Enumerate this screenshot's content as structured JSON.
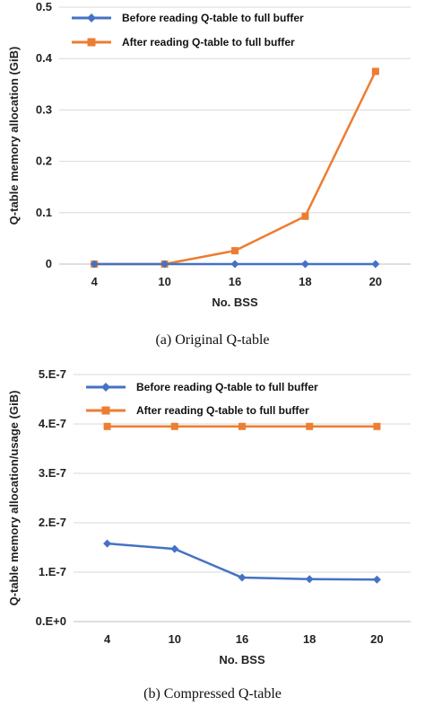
{
  "captions": {
    "a": "(a) Original Q-table",
    "b": "(b) Compressed Q-table"
  },
  "chart_data": [
    {
      "type": "line",
      "title": "",
      "xlabel": "No. BSS",
      "ylabel": "Q-table memory allocation (GiB)",
      "categories": [
        "4",
        "10",
        "16",
        "18",
        "20"
      ],
      "ylim": [
        0,
        0.5
      ],
      "yticks": [
        0,
        0.1,
        0.2,
        0.3,
        0.4,
        0.5
      ],
      "ytick_labels": [
        "0",
        "0.1",
        "0.2",
        "0.3",
        "0.4",
        "0.5"
      ],
      "grid": true,
      "legend": "top-left",
      "series": [
        {
          "name": "Before reading Q-table to full buffer",
          "color": "#4472c4",
          "marker": "diamond",
          "values": [
            0,
            0,
            0,
            0,
            0
          ]
        },
        {
          "name": "After reading Q-table to full buffer",
          "color": "#ed7d31",
          "marker": "square",
          "values": [
            0,
            0,
            0.026,
            0.093,
            0.375
          ]
        }
      ]
    },
    {
      "type": "line",
      "title": "",
      "xlabel": "No. BSS",
      "ylabel": "Q-table memory allocation/usage (GiB)",
      "categories": [
        "4",
        "10",
        "16",
        "18",
        "20"
      ],
      "ylim": [
        0,
        5e-07
      ],
      "yticks": [
        0,
        1e-07,
        2e-07,
        3e-07,
        4e-07,
        5e-07
      ],
      "ytick_labels": [
        "0.E+0",
        "1.E-7",
        "2.E-7",
        "3.E-7",
        "4.E-7",
        "5.E-7"
      ],
      "grid": true,
      "legend": "top-left",
      "series": [
        {
          "name": "Before reading Q-table to full buffer",
          "color": "#4472c4",
          "marker": "diamond",
          "values": [
            1.58e-07,
            1.47e-07,
            8.9e-08,
            8.6e-08,
            8.5e-08
          ]
        },
        {
          "name": "After reading Q-table to full buffer",
          "color": "#ed7d31",
          "marker": "square",
          "values": [
            3.95e-07,
            3.95e-07,
            3.95e-07,
            3.95e-07,
            3.95e-07
          ]
        }
      ]
    }
  ]
}
